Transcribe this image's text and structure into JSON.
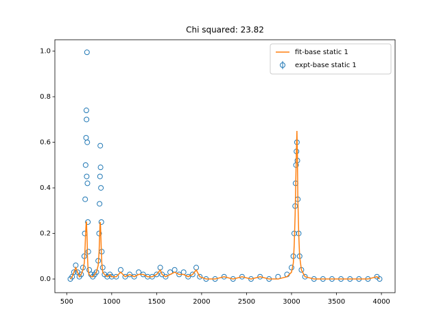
{
  "chart_data": {
    "type": "errorbar",
    "title": "Chi squared: 23.82",
    "x": [
      540,
      560,
      580,
      600,
      620,
      640,
      660,
      680,
      695,
      700,
      705,
      710,
      715,
      718,
      720,
      722,
      725,
      728,
      730,
      735,
      740,
      750,
      770,
      790,
      810,
      830,
      850,
      860,
      865,
      870,
      873,
      876,
      880,
      885,
      890,
      900,
      920,
      950,
      980,
      1000,
      1050,
      1100,
      1150,
      1200,
      1250,
      1300,
      1350,
      1400,
      1450,
      1500,
      1540,
      1560,
      1600,
      1650,
      1700,
      1750,
      1800,
      1850,
      1900,
      1940,
      1980,
      2050,
      2150,
      2250,
      2350,
      2450,
      2550,
      2650,
      2750,
      2850,
      2950,
      3000,
      3020,
      3030,
      3040,
      3045,
      3050,
      3055,
      3060,
      3065,
      3070,
      3080,
      3090,
      3110,
      3150,
      3250,
      3350,
      3450,
      3550,
      3650,
      3750,
      3850,
      3950,
      3980
    ],
    "series": [
      {
        "name": "fit-base static 1",
        "color": "#ff7f0e",
        "style": "line",
        "values": [
          0.0,
          0.01,
          0.03,
          0.05,
          0.03,
          0.01,
          0.02,
          0.04,
          0.07,
          0.1,
          0.15,
          0.2,
          0.24,
          0.25,
          0.25,
          0.22,
          0.2,
          0.15,
          0.1,
          0.06,
          0.03,
          0.02,
          0.01,
          0.01,
          0.02,
          0.03,
          0.06,
          0.12,
          0.18,
          0.24,
          0.25,
          0.23,
          0.18,
          0.12,
          0.07,
          0.03,
          0.02,
          0.01,
          0.02,
          0.01,
          0.01,
          0.03,
          0.01,
          0.02,
          0.01,
          0.02,
          0.02,
          0.01,
          0.01,
          0.02,
          0.04,
          0.02,
          0.01,
          0.02,
          0.03,
          0.02,
          0.02,
          0.01,
          0.02,
          0.04,
          0.01,
          0.0,
          0.0,
          0.01,
          0.0,
          0.01,
          0.0,
          0.01,
          0.0,
          0.0,
          0.01,
          0.03,
          0.07,
          0.15,
          0.28,
          0.38,
          0.48,
          0.57,
          0.65,
          0.55,
          0.36,
          0.2,
          0.1,
          0.04,
          0.01,
          0.0,
          0.0,
          0.0,
          0.0,
          0.0,
          0.0,
          0.0,
          0.01,
          0.0
        ]
      },
      {
        "name": "expt-base static 1",
        "color": "#1f77b4",
        "style": "errorbar",
        "values": [
          0.0,
          0.01,
          0.03,
          0.06,
          0.03,
          0.01,
          0.02,
          0.05,
          0.1,
          0.2,
          0.35,
          0.5,
          0.62,
          0.74,
          0.7,
          0.45,
          0.995,
          0.6,
          0.42,
          0.25,
          0.12,
          0.04,
          0.02,
          0.01,
          0.02,
          0.03,
          0.08,
          0.2,
          0.33,
          0.45,
          0.585,
          0.49,
          0.4,
          0.25,
          0.12,
          0.05,
          0.02,
          0.01,
          0.02,
          0.01,
          0.01,
          0.04,
          0.01,
          0.02,
          0.01,
          0.03,
          0.02,
          0.01,
          0.01,
          0.02,
          0.05,
          0.02,
          0.01,
          0.03,
          0.04,
          0.02,
          0.03,
          0.01,
          0.02,
          0.05,
          0.01,
          0.0,
          0.0,
          0.01,
          0.0,
          0.01,
          0.0,
          0.01,
          0.0,
          0.01,
          0.02,
          0.05,
          0.1,
          0.2,
          0.32,
          0.42,
          0.5,
          0.56,
          0.6,
          0.52,
          0.35,
          0.2,
          0.1,
          0.04,
          0.01,
          0.0,
          0.0,
          0.0,
          0.0,
          0.0,
          0.0,
          0.0,
          0.01,
          0.0
        ]
      }
    ],
    "xlim": [
      368,
      4152
    ],
    "ylim": [
      -0.06,
      1.05
    ],
    "xticks": [
      500,
      1000,
      1500,
      2000,
      2500,
      3000,
      3500,
      4000
    ],
    "yticks": [
      {
        "value": 0,
        "label": "0.0"
      },
      0.2,
      0.4,
      0.6,
      0.8,
      {
        "value": 1,
        "label": "1.0"
      }
    ],
    "legend": "upper right"
  }
}
